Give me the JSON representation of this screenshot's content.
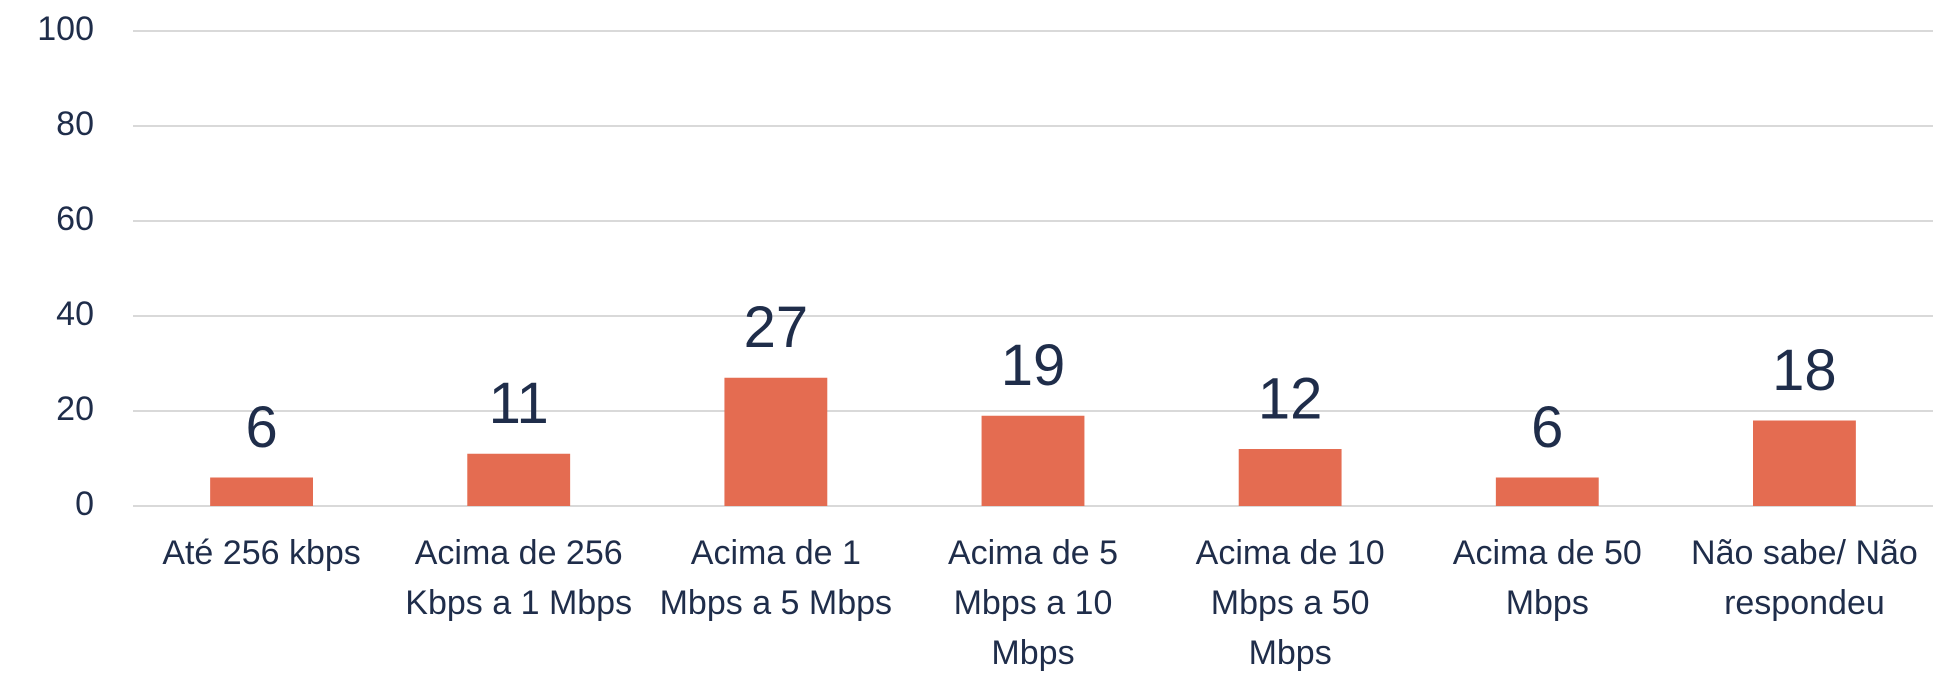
{
  "chart_data": {
    "type": "bar",
    "categories": [
      "Até 256 kbps",
      "Acima de 256 Kbps a 1 Mbps",
      "Acima de 1 Mbps a 5 Mbps",
      "Acima de 5 Mbps a 10 Mbps",
      "Acima de 10 Mbps a 50 Mbps",
      "Acima de 50 Mbps",
      "Não sabe/ Não respondeu"
    ],
    "values": [
      6,
      11,
      27,
      19,
      12,
      6,
      18
    ],
    "color": "#e46c51",
    "ylim": [
      0,
      100
    ],
    "yticks": [
      0,
      20,
      40,
      60,
      80,
      100
    ],
    "grid": true
  }
}
